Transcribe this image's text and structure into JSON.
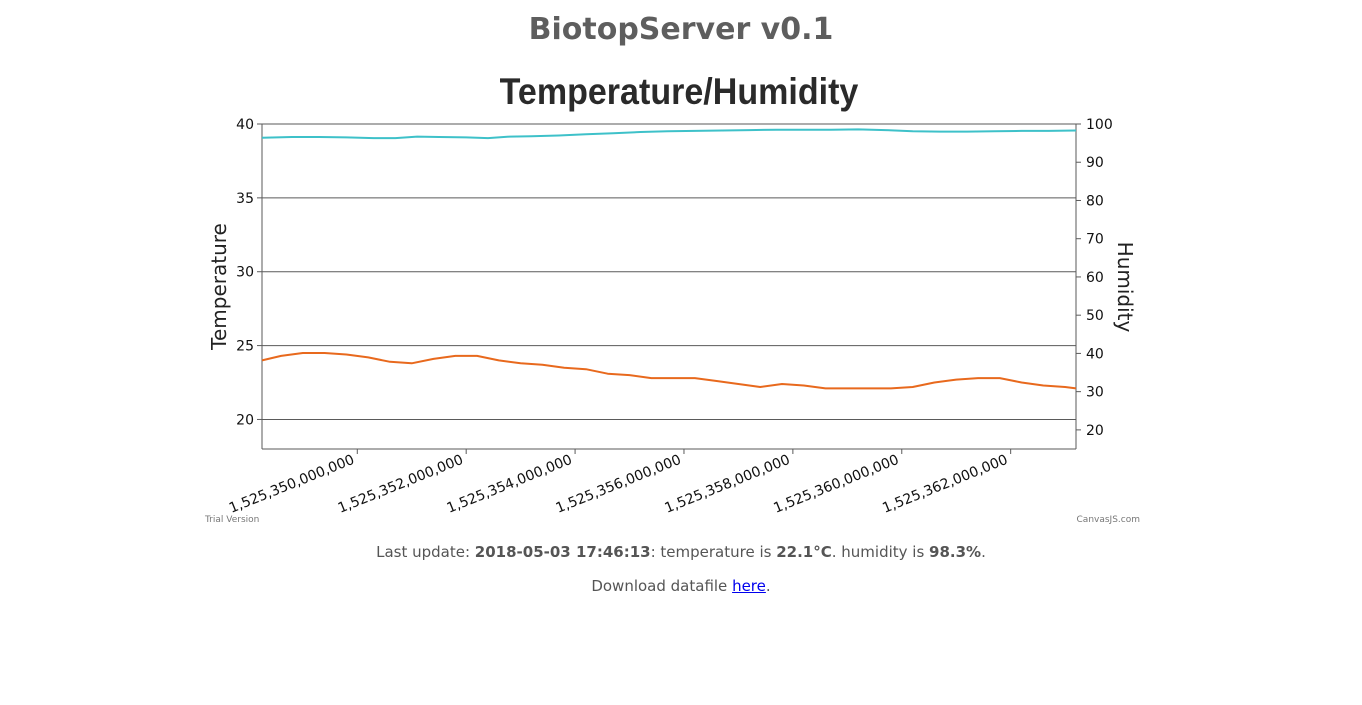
{
  "page": {
    "site_title": "BiotopServer v0.1"
  },
  "status": {
    "prefix": "Last update: ",
    "timestamp": "2018-05-03 17:46:13",
    "temp_text": ": temperature is ",
    "temperature": "22.1°C",
    "hum_text": ". humidity is ",
    "humidity": "98.3%",
    "suffix": "."
  },
  "download": {
    "prefix": "Download datafile ",
    "link_label": "here",
    "suffix": "."
  },
  "chart_data": {
    "type": "line",
    "title": "Temperature/Humidity",
    "watermark_left": "Trial Version",
    "watermark_right": "CanvasJS.com",
    "xlim": [
      1525348250000,
      1525363200000
    ],
    "x_ticks": [
      1525350000000,
      1525352000000,
      1525354000000,
      1525356000000,
      1525358000000,
      1525360000000,
      1525362000000
    ],
    "x_tick_labels": [
      "1,525,350,000,000",
      "1,525,352,000,000",
      "1,525,354,000,000",
      "1,525,356,000,000",
      "1,525,358,000,000",
      "1,525,360,000,000",
      "1,525,362,000,000"
    ],
    "y_left": {
      "label": "Temperature",
      "lim": [
        18,
        40
      ],
      "ticks": [
        20,
        25,
        30,
        35,
        40
      ],
      "grid": true
    },
    "y_right": {
      "label": "Humidity",
      "lim": [
        15,
        100
      ],
      "ticks": [
        20,
        30,
        40,
        50,
        60,
        70,
        80,
        90,
        100
      ]
    },
    "series": [
      {
        "axis": "right",
        "color": "#3ec1c9",
        "x": [
          1525348250000,
          1525348800000,
          1525349300000,
          1525349800000,
          1525350300000,
          1525350700000,
          1525351100000,
          1525351500000,
          1525352000000,
          1525352400000,
          1525352800000,
          1525353200000,
          1525353700000,
          1525354200000,
          1525354700000,
          1525355200000,
          1525355700000,
          1525356200000,
          1525356700000,
          1525357200000,
          1525357700000,
          1525358200000,
          1525358700000,
          1525359200000,
          1525359700000,
          1525360200000,
          1525360700000,
          1525361200000,
          1525361700000,
          1525362200000,
          1525362700000,
          1525363200000
        ],
        "values": [
          96.4,
          96.6,
          96.6,
          96.5,
          96.3,
          96.3,
          96.7,
          96.6,
          96.5,
          96.3,
          96.7,
          96.8,
          97.0,
          97.3,
          97.6,
          97.9,
          98.1,
          98.2,
          98.3,
          98.4,
          98.5,
          98.5,
          98.5,
          98.6,
          98.4,
          98.1,
          98.0,
          98.0,
          98.1,
          98.2,
          98.2,
          98.3
        ]
      },
      {
        "axis": "left",
        "color": "#e8691d",
        "x": [
          1525348250000,
          1525348600000,
          1525349000000,
          1525349400000,
          1525349800000,
          1525350200000,
          1525350600000,
          1525351000000,
          1525351400000,
          1525351800000,
          1525352200000,
          1525352600000,
          1525353000000,
          1525353400000,
          1525353800000,
          1525354200000,
          1525354600000,
          1525355000000,
          1525355400000,
          1525355800000,
          1525356200000,
          1525356600000,
          1525357000000,
          1525357400000,
          1525357800000,
          1525358200000,
          1525358600000,
          1525359000000,
          1525359400000,
          1525359800000,
          1525360200000,
          1525360600000,
          1525361000000,
          1525361400000,
          1525361800000,
          1525362200000,
          1525362600000,
          1525363000000,
          1525363200000
        ],
        "values": [
          24.0,
          24.3,
          24.5,
          24.5,
          24.4,
          24.2,
          23.9,
          23.8,
          24.1,
          24.3,
          24.3,
          24.0,
          23.8,
          23.7,
          23.5,
          23.4,
          23.1,
          23.0,
          22.8,
          22.8,
          22.8,
          22.6,
          22.4,
          22.2,
          22.4,
          22.3,
          22.1,
          22.1,
          22.1,
          22.1,
          22.2,
          22.5,
          22.7,
          22.8,
          22.8,
          22.5,
          22.3,
          22.2,
          22.1
        ]
      }
    ]
  }
}
